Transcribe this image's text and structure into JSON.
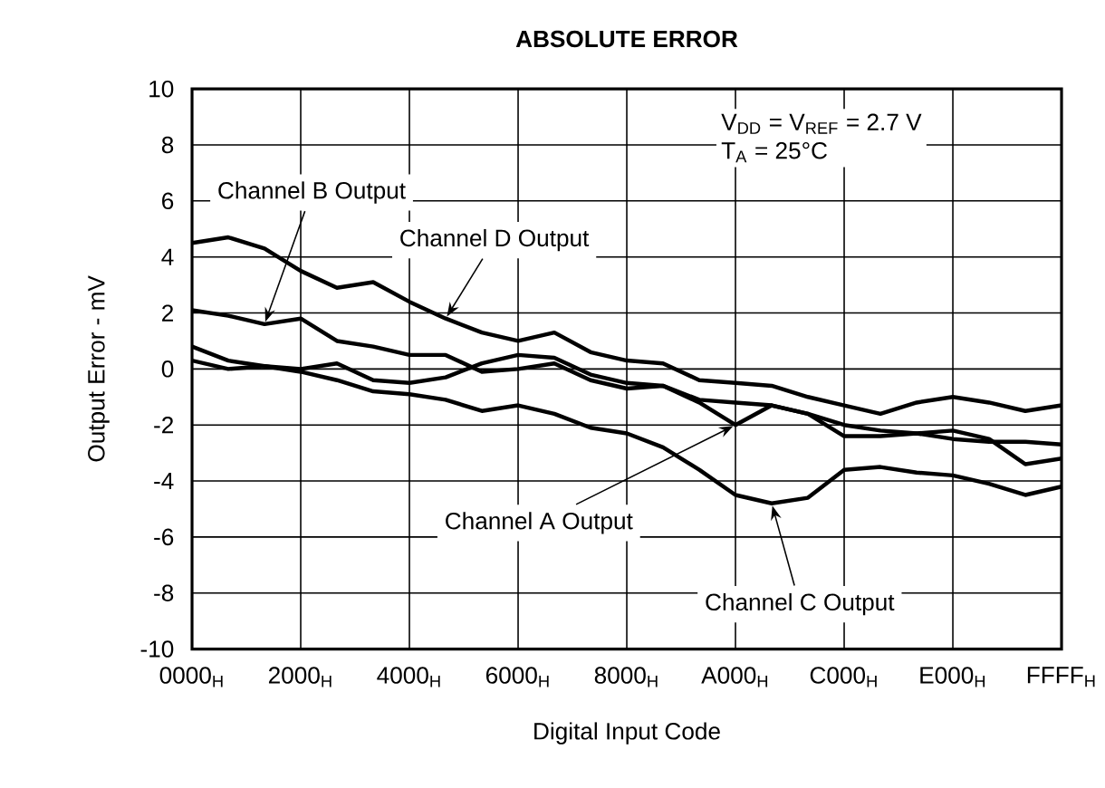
{
  "chart_data": {
    "type": "line",
    "title": "ABSOLUTE ERROR",
    "xlabel": "Digital Input Code",
    "ylabel": "Output Error - mV",
    "categories": [
      "0000$_{H}$",
      null,
      null,
      "2000$_{H}$",
      null,
      null,
      "4000$_{H}$",
      null,
      null,
      "6000$_{H}$",
      null,
      null,
      "8000$_{H}$",
      null,
      null,
      "A000$_{H}$",
      null,
      null,
      "C000$_{H}$",
      null,
      null,
      "E000$_{H}$",
      null,
      null,
      "FFFF$_{H}$"
    ],
    "series": [
      {
        "name": "Channel A Output",
        "color": "#000000",
        "values": [
          0.3,
          0.0,
          0.1,
          0.0,
          0.2,
          -0.4,
          -0.5,
          -0.3,
          0.2,
          0.5,
          0.4,
          -0.2,
          -0.5,
          -0.6,
          -1.2,
          -2.0,
          -1.3,
          -1.6,
          -2.4,
          -2.4,
          -2.3,
          -2.5,
          -2.6,
          -2.6,
          -2.7
        ]
      },
      {
        "name": "Channel B Output",
        "color": "#000000",
        "values": [
          2.1,
          1.9,
          1.6,
          1.8,
          1.0,
          0.8,
          0.5,
          0.5,
          -0.1,
          0.0,
          0.2,
          -0.4,
          -0.7,
          -0.6,
          -1.1,
          -1.2,
          -1.3,
          -1.6,
          -2.0,
          -2.2,
          -2.3,
          -2.2,
          -2.5,
          -3.4,
          -3.2
        ]
      },
      {
        "name": "Channel C Output",
        "color": "#000000",
        "values": [
          0.8,
          0.3,
          0.1,
          -0.1,
          -0.4,
          -0.8,
          -0.9,
          -1.1,
          -1.5,
          -1.3,
          -1.6,
          -2.1,
          -2.3,
          -2.8,
          -3.6,
          -4.5,
          -4.8,
          -4.6,
          -3.6,
          -3.5,
          -3.7,
          -3.8,
          -4.1,
          -4.5,
          -4.2
        ]
      },
      {
        "name": "Channel D Output",
        "color": "#000000",
        "values": [
          4.5,
          4.7,
          4.3,
          3.5,
          2.9,
          3.1,
          2.4,
          1.8,
          1.3,
          1.0,
          1.3,
          0.6,
          0.3,
          0.2,
          -0.4,
          -0.5,
          -0.6,
          -1.0,
          -1.3,
          -1.6,
          -1.2,
          -1.0,
          -1.2,
          -1.5,
          -1.3
        ]
      }
    ],
    "annotations": [
      "V$_{DD}$ = V$_{REF}$ = 2.7 V",
      "T$_{A}$ = 25°C"
    ],
    "ylim": [
      -10,
      10
    ],
    "yticks": [
      -10,
      -8,
      -6,
      -4,
      -2,
      0,
      2,
      4,
      6,
      8,
      10
    ],
    "grid": true,
    "legend": false,
    "marker": "none",
    "line_style": "solid"
  }
}
